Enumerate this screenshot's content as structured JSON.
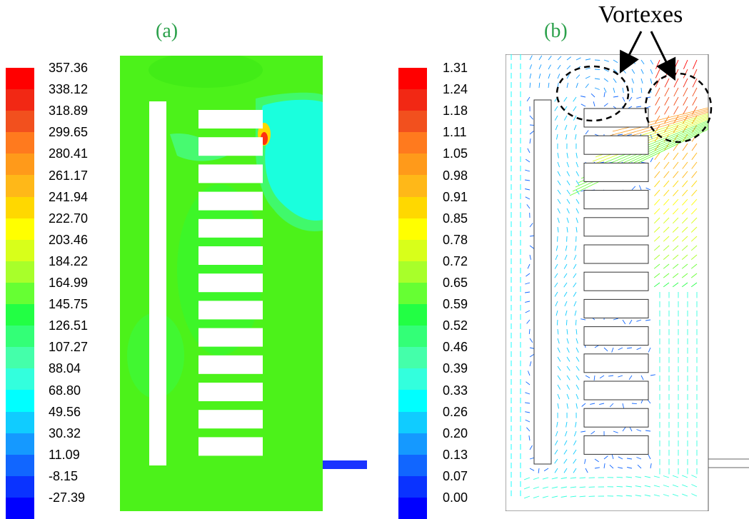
{
  "panels": [
    {
      "label": "(a)",
      "scale": [
        "357.36",
        "338.12",
        "318.89",
        "299.65",
        "280.41",
        "261.17",
        "241.94",
        "222.70",
        "203.46",
        "184.22",
        "164.99",
        "145.75",
        "126.51",
        "107.27",
        "88.04",
        "68.80",
        "49.56",
        "30.32",
        "11.09",
        "-8.15",
        "-27.39"
      ]
    },
    {
      "label": "(b)",
      "scale": [
        "1.31",
        "1.24",
        "1.18",
        "1.11",
        "1.05",
        "0.98",
        "0.91",
        "0.85",
        "0.78",
        "0.72",
        "0.65",
        "0.59",
        "0.52",
        "0.46",
        "0.39",
        "0.33",
        "0.26",
        "0.20",
        "0.13",
        "0.07",
        "0.00"
      ]
    }
  ],
  "annotation": "Vortexes",
  "colormap": [
    "#ff0000",
    "#f22814",
    "#f2501e",
    "#ff7a1e",
    "#ff9a1a",
    "#ffb818",
    "#ffd800",
    "#ffff00",
    "#d8ff1a",
    "#a8ff2a",
    "#66ff33",
    "#22ff44",
    "#33ff77",
    "#44ffaa",
    "#33ffdd",
    "#00ffff",
    "#10ccff",
    "#1599ff",
    "#1166ff",
    "#0a33ff",
    "#0000ff"
  ],
  "colors": {
    "label_green": "#2aa04a",
    "field_green": "#4cf21a",
    "cyan": "#00ffff"
  }
}
